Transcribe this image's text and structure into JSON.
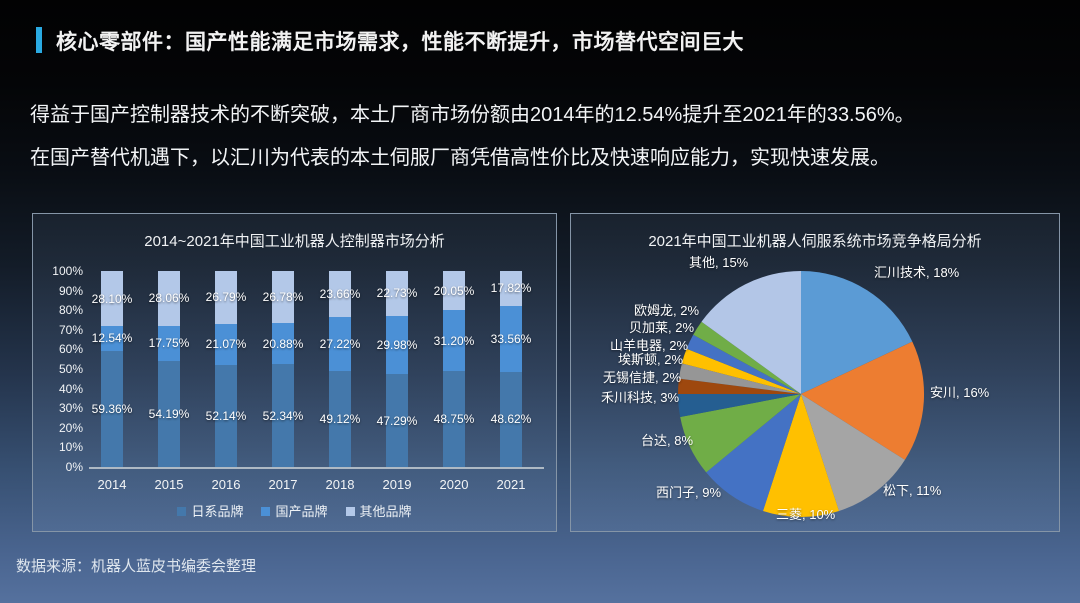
{
  "slide": {
    "title": "核心零部件：国产性能满足市场需求，性能不断提升，市场替代空间巨大",
    "accent_color": "#2aaae2",
    "body_line1": "得益于国产控制器技术的不断突破，本土厂商市场份额由2014年的12.54%提升至2021年的33.56%。",
    "body_line2": "在国产替代机遇下，以汇川为代表的本土伺服厂商凭借高性价比及快速响应能力，实现快速发展。",
    "source": "数据来源：机器人蓝皮书编委会整理"
  },
  "chart_data": [
    {
      "type": "bar",
      "subtype": "stacked-100-percent",
      "title": "2014~2021年中国工业机器人控制器市场分析",
      "categories": [
        "2014",
        "2015",
        "2016",
        "2017",
        "2018",
        "2019",
        "2020",
        "2021"
      ],
      "series": [
        {
          "name": "日系品牌",
          "color": "#4478ab",
          "values": [
            59.36,
            54.19,
            52.14,
            52.34,
            49.12,
            47.29,
            48.75,
            48.62
          ]
        },
        {
          "name": "国产品牌",
          "color": "#4b90d6",
          "values": [
            12.54,
            17.75,
            21.07,
            20.88,
            27.22,
            29.98,
            31.2,
            33.56
          ]
        },
        {
          "name": "其他品牌",
          "color": "#b3c8e8",
          "values": [
            28.1,
            28.06,
            26.79,
            26.78,
            23.66,
            22.73,
            20.05,
            17.82
          ]
        }
      ],
      "ylim": [
        0,
        100
      ],
      "yticks": [
        "0%",
        "10%",
        "20%",
        "30%",
        "40%",
        "50%",
        "60%",
        "70%",
        "80%",
        "90%",
        "100%"
      ],
      "value_label_format": "0.00%",
      "grid": false,
      "legend_position": "bottom"
    },
    {
      "type": "pie",
      "title": "2021年中国工业机器人伺服系统市场竞争格局分析",
      "direction": "clockwise",
      "start_angle_deg": 0,
      "label_format": "{name}, {value}%",
      "slices": [
        {
          "name": "汇川技术",
          "value": 18,
          "color": "#5b9bd5"
        },
        {
          "name": "安川",
          "value": 16,
          "color": "#ed7d31"
        },
        {
          "name": "松下",
          "value": 11,
          "color": "#a5a5a5"
        },
        {
          "name": "三菱",
          "value": 10,
          "color": "#ffc000"
        },
        {
          "name": "西门子",
          "value": 9,
          "color": "#4472c4"
        },
        {
          "name": "台达",
          "value": 8,
          "color": "#70ad47"
        },
        {
          "name": "禾川科技",
          "value": 3,
          "color": "#255e91"
        },
        {
          "name": "无锡信捷",
          "value": 2,
          "color": "#9e480e"
        },
        {
          "name": "埃斯顿",
          "value": 2,
          "color": "#969696"
        },
        {
          "name": "山羊电器",
          "value": 2,
          "color": "#ffc000"
        },
        {
          "name": "贝加莱",
          "value": 2,
          "color": "#4472c4"
        },
        {
          "name": "欧姆龙",
          "value": 2,
          "color": "#70ad47"
        },
        {
          "name": "其他",
          "value": 15,
          "color": "#b3c6e7"
        }
      ]
    }
  ]
}
